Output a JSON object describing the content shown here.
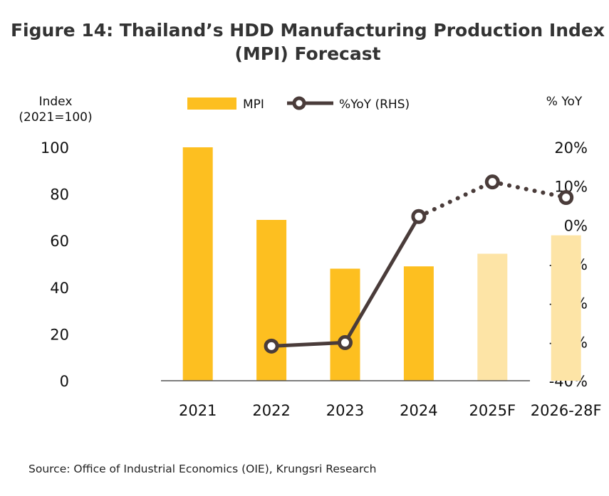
{
  "chart_data": {
    "type": "bar",
    "title_line1": "Figure 14: Thailand’s HDD Manufacturing Production Index",
    "title_line2": "(MPI) Forecast",
    "ylabel_left_line1": "Index",
    "ylabel_left_line2": "(2021=100)",
    "ylabel_right": "% YoY",
    "categories": [
      "2021",
      "2022",
      "2023",
      "2024",
      "2025F",
      "2026-28F"
    ],
    "forecast_flags": [
      false,
      false,
      false,
      false,
      true,
      true
    ],
    "left_ticks": [
      "100",
      "80",
      "60",
      "40",
      "20",
      "0"
    ],
    "right_ticks": [
      "20%",
      "10%",
      "0%",
      "-10%",
      "-20%",
      "-30%",
      "-40%"
    ],
    "ylim_left": [
      0,
      100
    ],
    "ylim_right": [
      -40,
      20
    ],
    "legend": {
      "position": "top-center",
      "mpi": "MPI",
      "yoy": "%YoY (RHS)"
    },
    "series": [
      {
        "name": "MPI",
        "axis": "left",
        "type": "bar",
        "values": [
          100,
          68.9,
          48,
          49,
          54.4,
          62.3
        ]
      },
      {
        "name": "%YoY (RHS)",
        "axis": "right",
        "type": "line",
        "values": [
          null,
          -31.1,
          -30.2,
          2.2,
          11.1,
          7.1
        ]
      }
    ],
    "colors": {
      "bar": "#FDBF20",
      "bar_forecast": "#FDE4A6",
      "line": "#4A3C3A"
    },
    "source": "Source: Office of Industrial Economics (OIE), Krungsri Research"
  }
}
